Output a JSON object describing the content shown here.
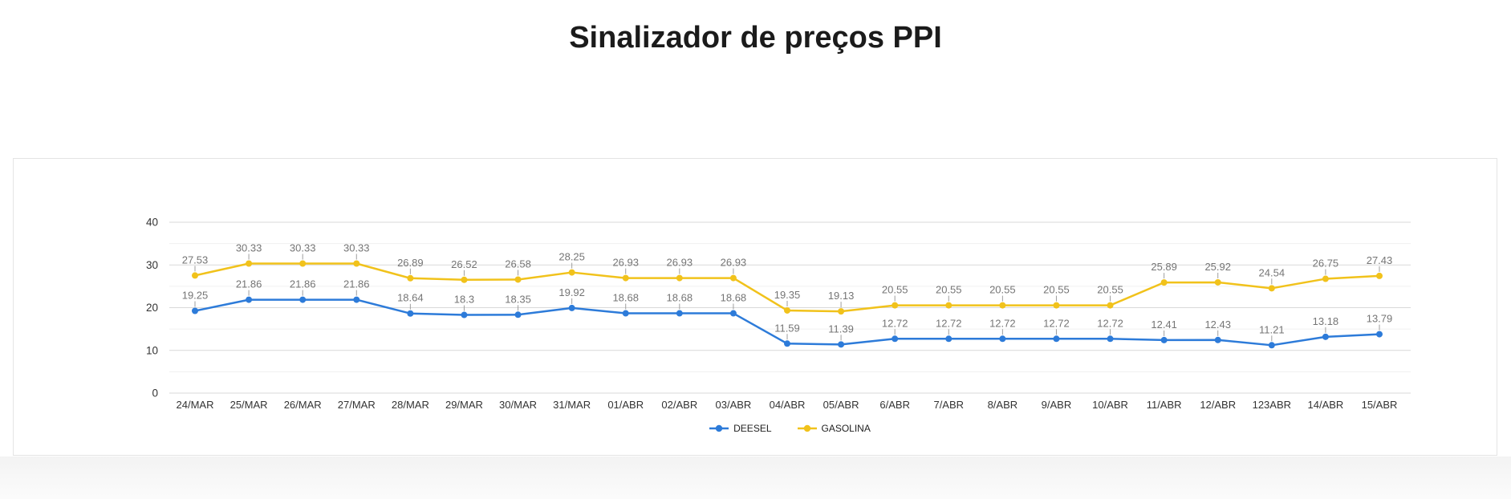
{
  "page": {
    "title": "Sinalizador de preços PPI"
  },
  "chart_data": {
    "type": "line",
    "title": "Sinalizador de preços PPI",
    "categories": [
      "24/MAR",
      "25/MAR",
      "26/MAR",
      "27/MAR",
      "28/MAR",
      "29/MAR",
      "30/MAR",
      "31/MAR",
      "01/ABR",
      "02/ABR",
      "03/ABR",
      "04/ABR",
      "05/ABR",
      "6/ABR",
      "7/ABR",
      "8/ABR",
      "9/ABR",
      "10/ABR",
      "11/ABR",
      "12/ABR",
      "123ABR",
      "14/ABR",
      "15/ABR"
    ],
    "series": [
      {
        "name": "DEESEL",
        "color": "#2d7bd9",
        "values": [
          19.25,
          21.86,
          21.86,
          21.86,
          18.64,
          18.3,
          18.35,
          19.92,
          18.68,
          18.68,
          18.68,
          11.59,
          11.39,
          12.72,
          12.72,
          12.72,
          12.72,
          12.72,
          12.41,
          12.43,
          11.21,
          13.18,
          13.79
        ]
      },
      {
        "name": "GASOLINA",
        "color": "#f1c21b",
        "values": [
          27.53,
          30.33,
          30.33,
          30.33,
          26.89,
          26.52,
          26.58,
          28.25,
          26.93,
          26.93,
          26.93,
          19.35,
          19.13,
          20.55,
          20.55,
          20.55,
          20.55,
          20.55,
          25.89,
          25.92,
          24.54,
          26.75,
          27.43
        ]
      }
    ],
    "ylim": [
      0,
      40
    ],
    "yticks": [
      0,
      10,
      20,
      30,
      40
    ],
    "grid": "on",
    "minor_gridlines": true,
    "legend_position": "bottom",
    "annotation_color": "#757575",
    "annotation_stem_color": "#9e9e9e",
    "axis_label_color": "#333333"
  }
}
